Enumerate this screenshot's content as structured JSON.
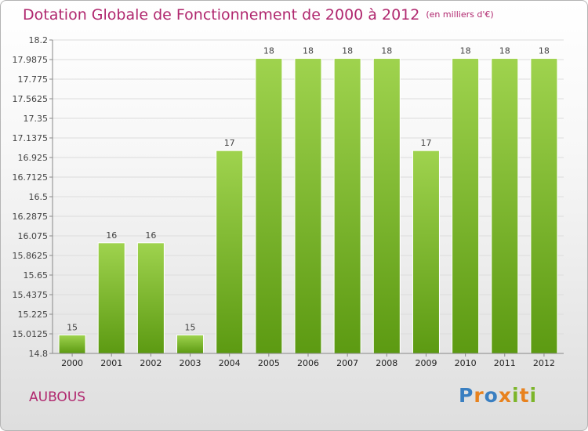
{
  "chart_data": {
    "type": "bar",
    "title": "Dotation Globale de Fonctionnement de 2000 à 2012",
    "unit": "(en milliers d'€)",
    "categories": [
      "2000",
      "2001",
      "2002",
      "2003",
      "2004",
      "2005",
      "2006",
      "2007",
      "2008",
      "2009",
      "2010",
      "2011",
      "2012"
    ],
    "values": [
      15,
      16,
      16,
      15,
      17,
      18,
      18,
      18,
      18,
      17,
      18,
      18,
      18
    ],
    "data_labels": [
      "15",
      "16",
      "16",
      "15",
      "17",
      "18",
      "18",
      "18",
      "18",
      "17",
      "18",
      "18",
      "18"
    ],
    "ylim": [
      14.8,
      18.2
    ],
    "y_ticks": [
      "18.2",
      "17.9875",
      "17.775",
      "17.5625",
      "17.35",
      "17.1375",
      "16.925",
      "16.7125",
      "16.5",
      "16.2875",
      "16.075",
      "15.8625",
      "15.65",
      "15.4375",
      "15.225",
      "15.0125",
      "14.8"
    ],
    "grid": true,
    "bar_color": "#7fbf2a"
  },
  "footer": {
    "commune": "AUBOUS",
    "logo_letters": [
      "P",
      "r",
      "o",
      "x",
      "i",
      "t",
      "i"
    ],
    "logo_colors": [
      "#3a7fc1",
      "#e8821e",
      "#3a7fc1",
      "#e8821e",
      "#7cb52a",
      "#e8821e",
      "#7cb52a"
    ]
  }
}
